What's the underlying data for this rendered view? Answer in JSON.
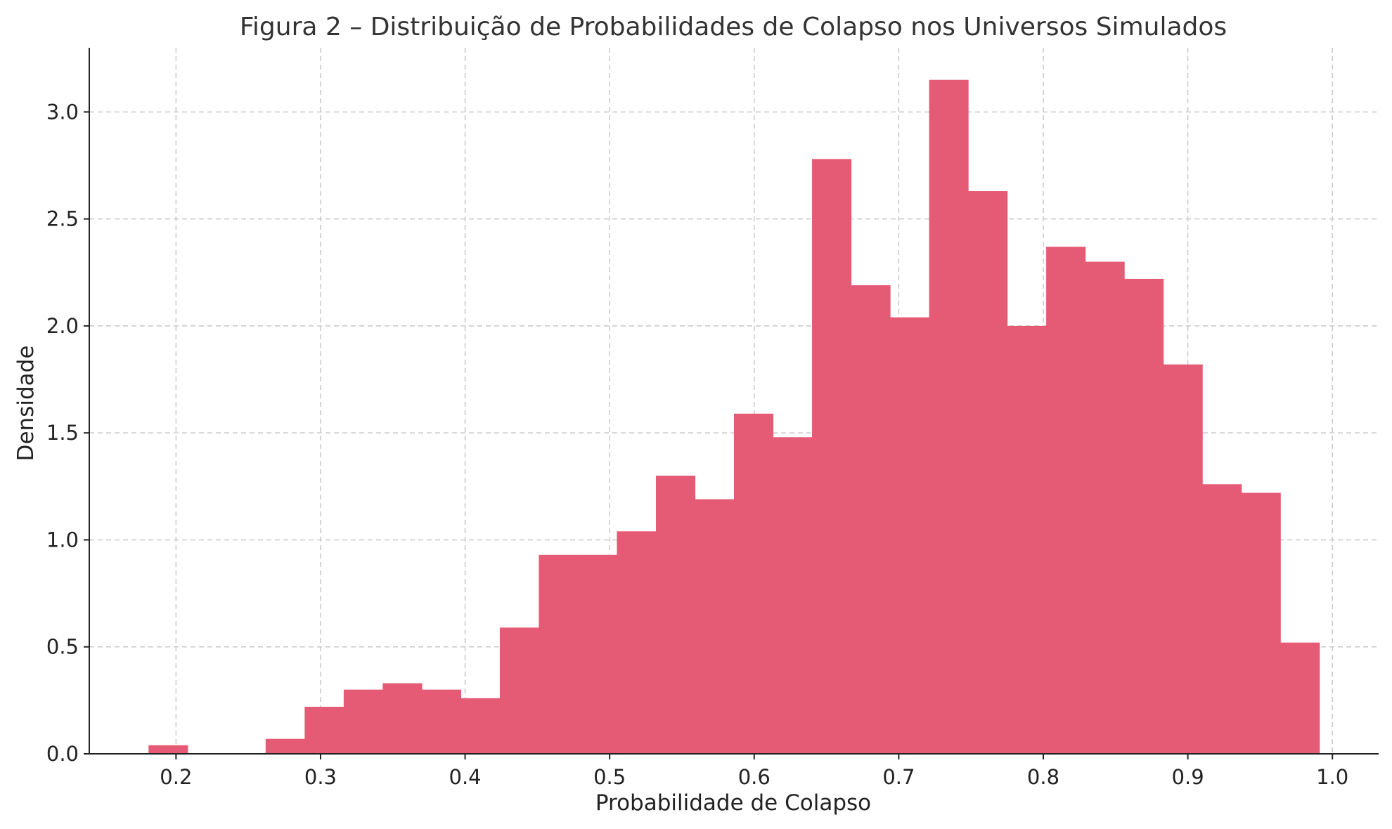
{
  "chart_data": {
    "type": "bar",
    "title": "Figura 2 – Distribuição de Probabilidades de Colapso nos Universos Simulados",
    "xlabel": "Probabilidade de Colapso",
    "ylabel": "Densidade",
    "xlim": [
      0.14,
      1.032
    ],
    "ylim": [
      0,
      3.3
    ],
    "xticks": [
      0.2,
      0.3,
      0.4,
      0.5,
      0.6,
      0.7,
      0.8,
      0.9,
      1.0
    ],
    "xtick_labels": [
      "0.2",
      "0.3",
      "0.4",
      "0.5",
      "0.6",
      "0.7",
      "0.8",
      "0.9",
      "1.0"
    ],
    "yticks": [
      0.0,
      0.5,
      1.0,
      1.5,
      2.0,
      2.5,
      3.0
    ],
    "ytick_labels": [
      "0.0",
      "0.5",
      "1.0",
      "1.5",
      "2.0",
      "2.5",
      "3.0"
    ],
    "grid": true,
    "bar_color": "#e55a74",
    "bins": [
      {
        "x0": 0.181,
        "x1": 0.208,
        "value": 0.04
      },
      {
        "x0": 0.208,
        "x1": 0.235,
        "value": 0.0
      },
      {
        "x0": 0.235,
        "x1": 0.262,
        "value": 0.0
      },
      {
        "x0": 0.262,
        "x1": 0.289,
        "value": 0.07
      },
      {
        "x0": 0.289,
        "x1": 0.316,
        "value": 0.22
      },
      {
        "x0": 0.316,
        "x1": 0.343,
        "value": 0.3
      },
      {
        "x0": 0.343,
        "x1": 0.37,
        "value": 0.33
      },
      {
        "x0": 0.37,
        "x1": 0.397,
        "value": 0.3
      },
      {
        "x0": 0.397,
        "x1": 0.424,
        "value": 0.26
      },
      {
        "x0": 0.424,
        "x1": 0.451,
        "value": 0.59
      },
      {
        "x0": 0.451,
        "x1": 0.478,
        "value": 0.93
      },
      {
        "x0": 0.478,
        "x1": 0.505,
        "value": 0.93
      },
      {
        "x0": 0.505,
        "x1": 0.532,
        "value": 1.04
      },
      {
        "x0": 0.532,
        "x1": 0.559,
        "value": 1.3
      },
      {
        "x0": 0.559,
        "x1": 0.586,
        "value": 1.19
      },
      {
        "x0": 0.586,
        "x1": 0.613,
        "value": 1.59
      },
      {
        "x0": 0.613,
        "x1": 0.64,
        "value": 1.48
      },
      {
        "x0": 0.64,
        "x1": 0.667,
        "value": 2.78
      },
      {
        "x0": 0.667,
        "x1": 0.694,
        "value": 2.19
      },
      {
        "x0": 0.694,
        "x1": 0.721,
        "value": 2.04
      },
      {
        "x0": 0.721,
        "x1": 0.748,
        "value": 3.15
      },
      {
        "x0": 0.748,
        "x1": 0.775,
        "value": 2.63
      },
      {
        "x0": 0.775,
        "x1": 0.802,
        "value": 2.0
      },
      {
        "x0": 0.802,
        "x1": 0.829,
        "value": 2.37
      },
      {
        "x0": 0.829,
        "x1": 0.856,
        "value": 2.3
      },
      {
        "x0": 0.856,
        "x1": 0.883,
        "value": 2.22
      },
      {
        "x0": 0.883,
        "x1": 0.91,
        "value": 1.82
      },
      {
        "x0": 0.91,
        "x1": 0.937,
        "value": 1.26
      },
      {
        "x0": 0.937,
        "x1": 0.964,
        "value": 1.22
      },
      {
        "x0": 0.964,
        "x1": 0.991,
        "value": 0.52
      }
    ]
  }
}
